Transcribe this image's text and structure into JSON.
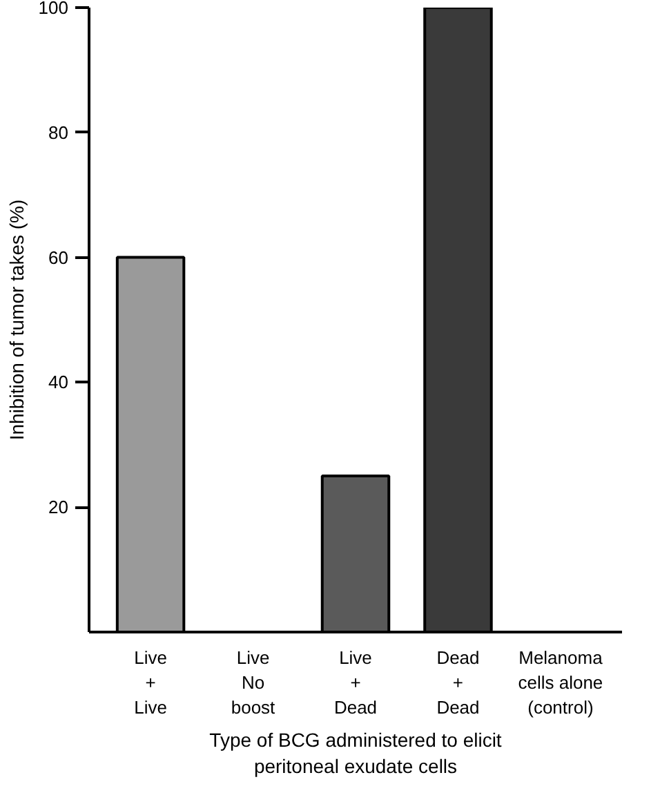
{
  "chart_data": {
    "type": "bar",
    "xlabel": "Type of BCG administered to elicit\nperitoneal exudate cells",
    "ylabel": "Inhibition of tumor takes (%)",
    "categories": [
      "Live\n+\nLive",
      "Live\nNo\nboost",
      "Live\n+\nDead",
      "Dead\n+\nDead",
      "Melanoma\ncells alone\n(control)"
    ],
    "values": [
      60,
      0,
      25,
      100,
      0
    ],
    "colors": [
      "#9a9a9a",
      "#000000",
      "#5a5a5a",
      "#3a3a3a",
      "#000000"
    ],
    "ylim": [
      0,
      100
    ],
    "yticks": [
      20,
      40,
      60,
      80,
      100
    ],
    "grid": false
  }
}
